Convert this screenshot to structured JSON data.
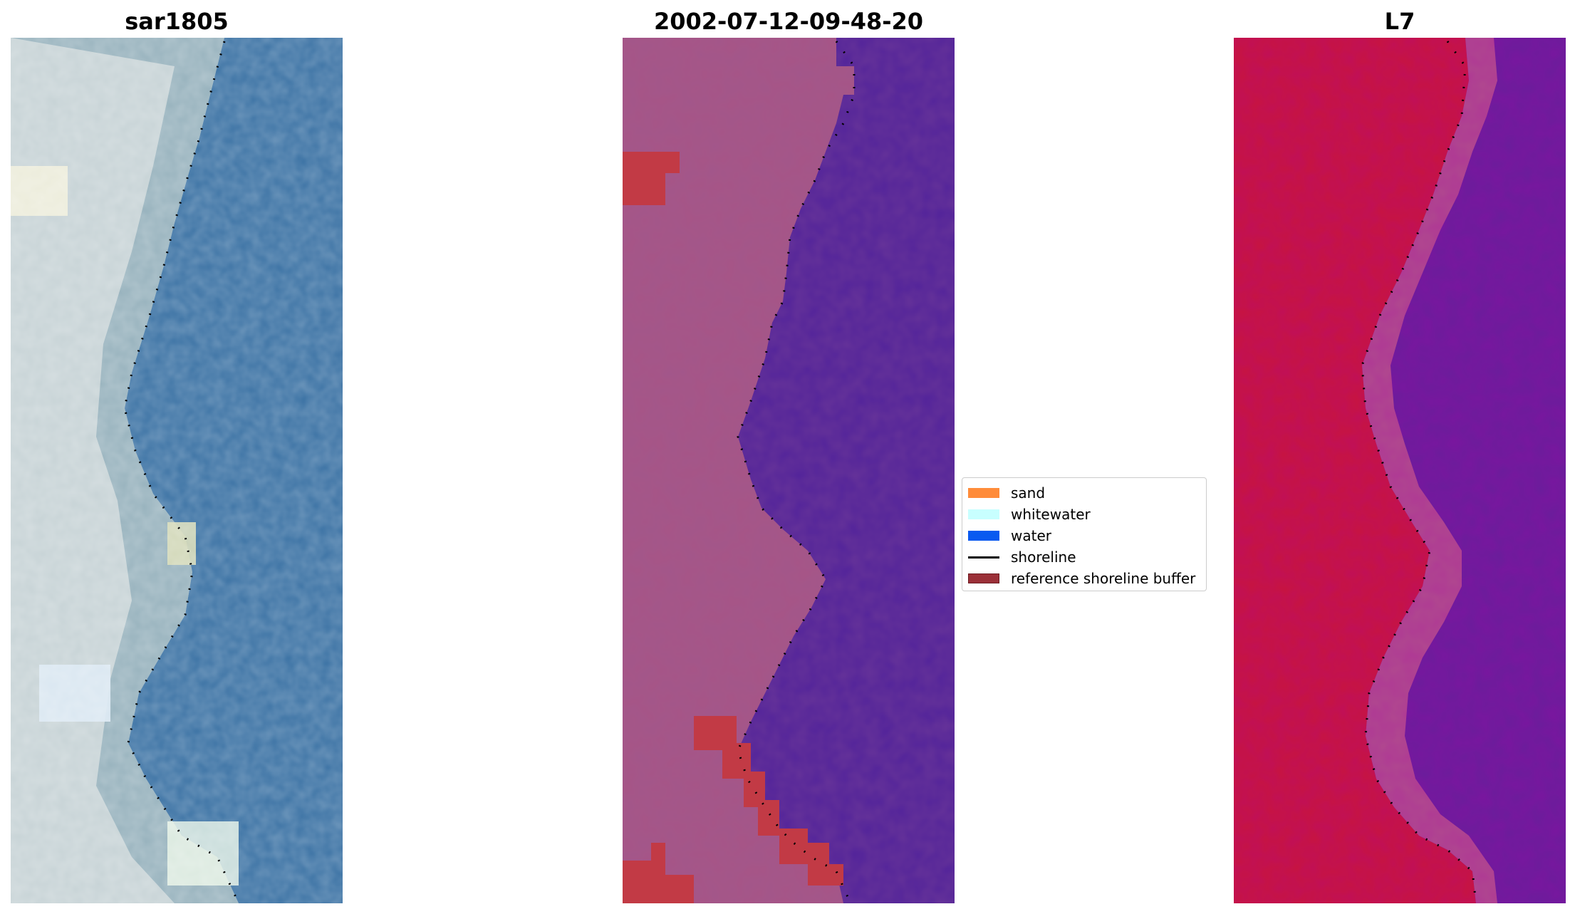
{
  "panels": [
    {
      "id": "sar",
      "title": "sar1805"
    },
    {
      "id": "classified",
      "title": "2002-07-12-09-48-20"
    },
    {
      "id": "index",
      "title": "L7"
    }
  ],
  "legend": {
    "items": [
      {
        "label": "sand",
        "color": "#ff8c3a",
        "kind": "patch"
      },
      {
        "label": "whitewater",
        "color": "#c8ffff",
        "kind": "patch"
      },
      {
        "label": "water",
        "color": "#0a5af0",
        "kind": "patch"
      },
      {
        "label": "shoreline",
        "color": "#000000",
        "kind": "line"
      },
      {
        "label": "reference shoreline buffer",
        "color": "#9b3038",
        "kind": "patch"
      }
    ]
  },
  "colors": {
    "sar_land": "#c7d3d6",
    "sar_water": "#3b72a4",
    "classified_land": "#a75586",
    "classified_water": "#52239a",
    "buffer": "#c23a45",
    "index_land": "#c7143f",
    "index_water": "#6a1d9b"
  }
}
